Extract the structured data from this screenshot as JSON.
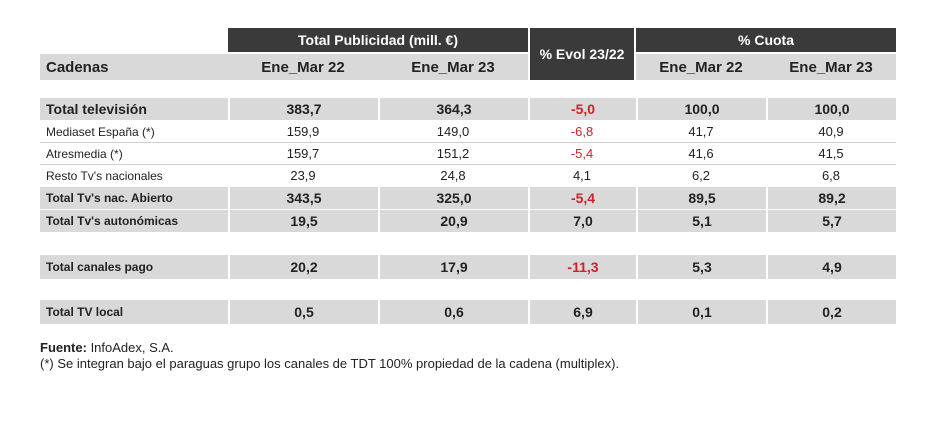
{
  "header": {
    "group_publicidad": "Total Publicidad (mill. €)",
    "evol": "% Evol 23/22",
    "group_cuota": "% Cuota",
    "col_cadenas": "Cadenas",
    "col_ene_mar_22": "Ene_Mar 22",
    "col_ene_mar_23": "Ene_Mar 23",
    "col_cuota_22": "Ene_Mar 22",
    "col_cuota_23": "Ene_Mar 23"
  },
  "rows": [
    {
      "label": "Total televisión",
      "pub22": "383,7",
      "pub23": "364,3",
      "evol": "-5,0",
      "cuota22": "100,0",
      "cuota23": "100,0"
    },
    {
      "label": "Mediaset España (*)",
      "pub22": "159,9",
      "pub23": "149,0",
      "evol": "-6,8",
      "cuota22": "41,7",
      "cuota23": "40,9"
    },
    {
      "label": "Atresmedia (*)",
      "pub22": "159,7",
      "pub23": "151,2",
      "evol": "-5,4",
      "cuota22": "41,6",
      "cuota23": "41,5"
    },
    {
      "label": "Resto Tv's nacionales",
      "pub22": "23,9",
      "pub23": "24,8",
      "evol": "4,1",
      "cuota22": "6,2",
      "cuota23": "6,8"
    },
    {
      "label": "Total Tv's nac. Abierto",
      "pub22": "343,5",
      "pub23": "325,0",
      "evol": "-5,4",
      "cuota22": "89,5",
      "cuota23": "89,2"
    },
    {
      "label": "Total Tv's autonómicas",
      "pub22": "19,5",
      "pub23": "20,9",
      "evol": "7,0",
      "cuota22": "5,1",
      "cuota23": "5,7"
    },
    {
      "label": "Total canales pago",
      "pub22": "20,2",
      "pub23": "17,9",
      "evol": "-11,3",
      "cuota22": "5,3",
      "cuota23": "4,9"
    },
    {
      "label": "Total TV local",
      "pub22": "0,5",
      "pub23": "0,6",
      "evol": "6,9",
      "cuota22": "0,1",
      "cuota23": "0,2"
    }
  ],
  "notes": {
    "fuente_label": "Fuente:",
    "fuente_value": " InfoAdex, S.A.",
    "footnote": "(*) Se integran bajo el paraguas grupo los canales de TDT 100% propiedad de la cadena (multiplex)."
  },
  "colors": {
    "header_dark": "#3a3a3a",
    "row_grey": "#d9d9d9",
    "negative": "#d0202a"
  }
}
